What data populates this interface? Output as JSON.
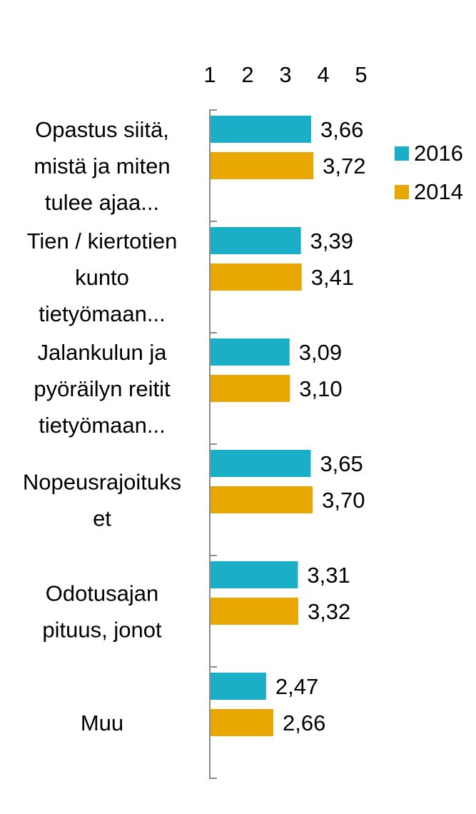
{
  "chart_data": {
    "type": "bar",
    "orientation": "horizontal",
    "title": "",
    "xlabel": "",
    "ylabel": "",
    "xlim": [
      1,
      5
    ],
    "x_ticks": [
      "1",
      "2",
      "3",
      "4",
      "5"
    ],
    "x_axis_position": "top",
    "grid": false,
    "legend_position": "right",
    "categories": [
      [
        "Opastus siitä,",
        "mistä ja miten",
        "tulee ajaa..."
      ],
      [
        "Tien / kiertotien",
        "kunto",
        "tietyömaan..."
      ],
      [
        "Jalankulun ja",
        "pyöräilyn reitit",
        "tietyömaan..."
      ],
      [
        "Nopeusrajoituks",
        "et"
      ],
      [
        "Odotusajan",
        "pituus, jonot"
      ],
      [
        "Muu"
      ]
    ],
    "series": [
      {
        "name": "2016",
        "color": "#1aafc6",
        "values": [
          3.66,
          3.39,
          3.09,
          3.65,
          3.31,
          2.47
        ],
        "labels": [
          "3,66",
          "3,39",
          "3,09",
          "3,65",
          "3,31",
          "2,47"
        ]
      },
      {
        "name": "2014",
        "color": "#e8a800",
        "values": [
          3.72,
          3.41,
          3.1,
          3.7,
          3.32,
          2.66
        ],
        "labels": [
          "3,72",
          "3,41",
          "3,10",
          "3,70",
          "3,32",
          "2,66"
        ]
      }
    ]
  }
}
